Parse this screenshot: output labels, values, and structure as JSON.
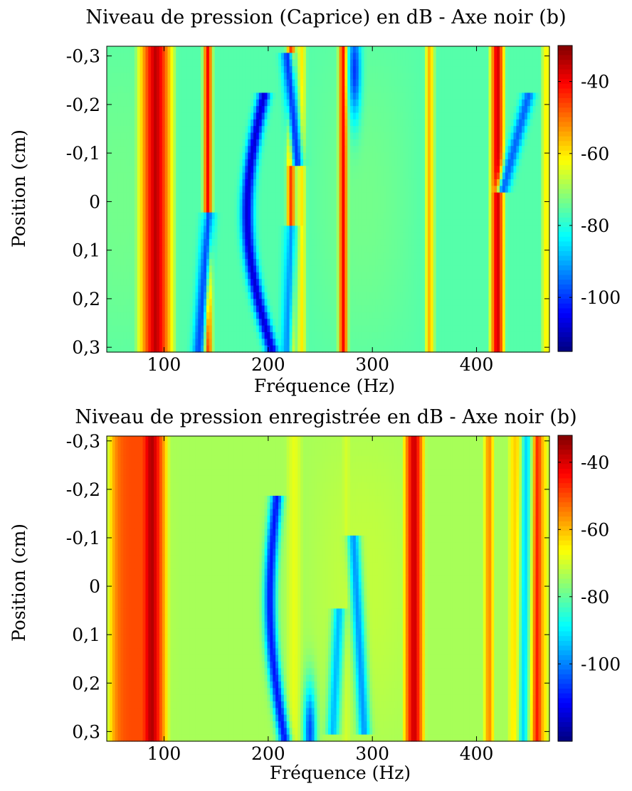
{
  "chart_data": [
    {
      "type": "heatmap",
      "title": "Niveau de pression (Caprice) en dB - Axe noir (b)",
      "xlabel": "Fréquence (Hz)",
      "ylabel": "Position (cm)",
      "xlim": [
        45,
        470
      ],
      "ylim": [
        -0.32,
        0.31
      ],
      "x_ticks": [
        100,
        200,
        300,
        400
      ],
      "x_tick_labels": [
        "100",
        "200",
        "300",
        "400"
      ],
      "y_ticks": [
        -0.3,
        -0.2,
        -0.1,
        0,
        0.1,
        0.2,
        0.3
      ],
      "y_tick_labels": [
        "-0,3",
        "-0,2",
        "-0,1",
        "0",
        "0,1",
        "0,2",
        "0,3"
      ],
      "colorbar": {
        "range": [
          -115,
          -30
        ],
        "ticks": [
          -40,
          -60,
          -80,
          -100
        ],
        "tick_labels": [
          "-40",
          "-60",
          "-80",
          "-100"
        ]
      },
      "background_db": -76,
      "resonance_lines": [
        {
          "freq": 92,
          "level_db": -35,
          "width_hz": 7
        },
        {
          "freq": 142,
          "level_db": -40,
          "width_hz": 2
        },
        {
          "freq": 222,
          "level_db": -45,
          "width_hz": 2
        },
        {
          "freq": 232,
          "level_db": -60,
          "width_hz": 2
        },
        {
          "freq": 272,
          "level_db": -40,
          "width_hz": 2
        },
        {
          "freq": 355,
          "level_db": -55,
          "width_hz": 2
        },
        {
          "freq": 420,
          "level_db": -36,
          "width_hz": 3
        },
        {
          "freq": 467,
          "level_db": -60,
          "width_hz": 2
        }
      ],
      "minima": [
        {
          "type": "arc",
          "center_freq": 200,
          "bow_hz": 20,
          "y_from": -0.22,
          "y_to": 0.31,
          "level_db": -108
        },
        {
          "type": "line",
          "f1": 133,
          "y1": 0.31,
          "f2": 143,
          "y2": 0.02,
          "level_db": -98
        },
        {
          "type": "line",
          "f1": 218,
          "y1": -0.31,
          "f2": 228,
          "y2": -0.08,
          "level_db": -100
        },
        {
          "type": "line",
          "f1": 222,
          "y1": 0.05,
          "f2": 218,
          "y2": 0.31,
          "level_db": -92
        },
        {
          "type": "blob",
          "freq": 283,
          "y": -0.27,
          "level_db": -100
        },
        {
          "type": "line",
          "f1": 450,
          "y1": -0.22,
          "f2": 425,
          "y2": -0.02,
          "level_db": -96
        }
      ]
    },
    {
      "type": "heatmap",
      "title": "Niveau de pression enregistrée en dB - Axe noir (b)",
      "xlabel": "Fréquence (Hz)",
      "ylabel": "Position (cm)",
      "xlim": [
        45,
        470
      ],
      "ylim": [
        -0.31,
        0.32
      ],
      "x_ticks": [
        100,
        200,
        300,
        400
      ],
      "x_tick_labels": [
        "100",
        "200",
        "300",
        "400"
      ],
      "y_ticks": [
        -0.3,
        -0.2,
        -0.1,
        0,
        0.1,
        0.2,
        0.3
      ],
      "y_tick_labels": [
        "-0,3",
        "-0,2",
        "-0,1",
        "0",
        "0,1",
        "0,2",
        "0,3"
      ],
      "colorbar": {
        "range": [
          -123,
          -32
        ],
        "ticks": [
          -40,
          -60,
          -80,
          -100
        ],
        "tick_labels": [
          "-40",
          "-60",
          "-80",
          "-100"
        ]
      },
      "background_db": -74,
      "broad_regions": [
        {
          "f_from": 45,
          "f_to": 105,
          "level_db": -50
        },
        {
          "f_from": 430,
          "f_to": 470,
          "level_db": -58
        }
      ],
      "resonance_lines": [
        {
          "freq": 88,
          "level_db": -36,
          "width_hz": 6
        },
        {
          "freq": 143,
          "level_db": -82,
          "width_hz": 2
        },
        {
          "freq": 225,
          "level_db": -68,
          "width_hz": 3
        },
        {
          "freq": 275,
          "level_db": -70,
          "width_hz": 2
        },
        {
          "freq": 340,
          "level_db": -38,
          "width_hz": 4
        },
        {
          "freq": 412,
          "level_db": -55,
          "width_hz": 2
        },
        {
          "freq": 458,
          "level_db": -45,
          "width_hz": 3
        }
      ],
      "minima": [
        {
          "type": "arc",
          "center_freq": 212,
          "bow_hz": 10,
          "y_from": -0.18,
          "y_to": 0.32,
          "level_db": -110
        },
        {
          "type": "line",
          "f1": 282,
          "y1": -0.1,
          "f2": 292,
          "y2": 0.3,
          "level_db": -98
        },
        {
          "type": "line",
          "f1": 268,
          "y1": 0.05,
          "f2": 262,
          "y2": 0.3,
          "level_db": -95
        },
        {
          "type": "line",
          "f1": 448,
          "y1": -0.31,
          "f2": 445,
          "y2": 0.32,
          "level_db": -92
        },
        {
          "type": "blob",
          "freq": 240,
          "y": 0.3,
          "level_db": -105
        }
      ]
    }
  ]
}
